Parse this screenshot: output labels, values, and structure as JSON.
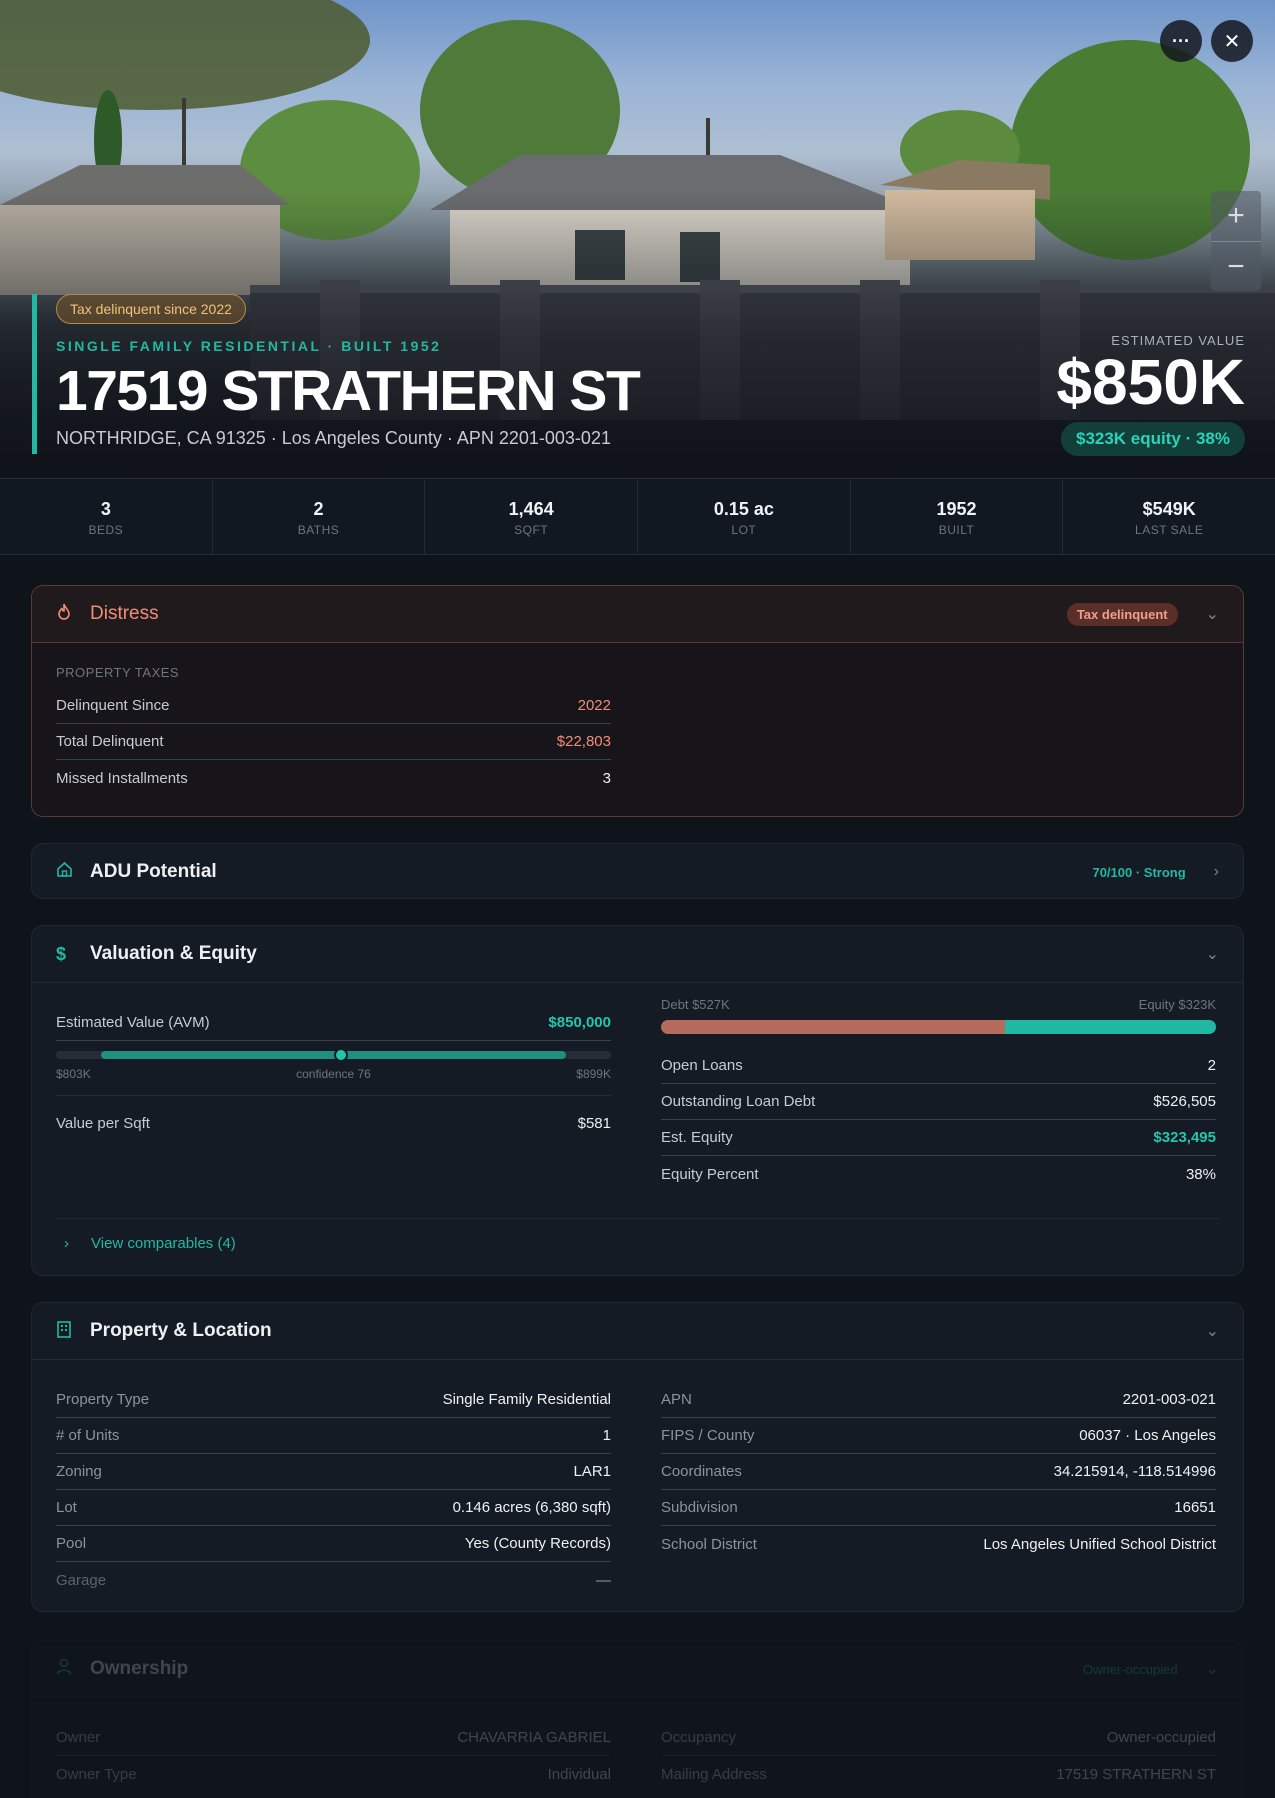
{
  "hero": {
    "tax_pill": "Tax delinquent since 2022",
    "subtitle": "SINGLE FAMILY RESIDENTIAL · BUILT 1952",
    "title": "17519 STRATHERN ST",
    "address": "NORTHRIDGE, CA 91325 · Los Angeles County · APN 2201-003-021",
    "estimated_label": "ESTIMATED VALUE",
    "estimated_value": "$850K",
    "equity_pill": "$323K equity · 38%",
    "zoom_in": "+",
    "zoom_out": "−",
    "more": "···",
    "close": "✕"
  },
  "stats": [
    {
      "value": "3",
      "label": "BEDS"
    },
    {
      "value": "2",
      "label": "BATHS"
    },
    {
      "value": "1,464",
      "label": "SQFT"
    },
    {
      "value": "0.15 ac",
      "label": "LOT"
    },
    {
      "value": "1952",
      "label": "BUILT"
    },
    {
      "value": "$549K",
      "label": "LAST SALE"
    }
  ],
  "distress": {
    "title": "Distress",
    "badge": "Tax delinquent",
    "section": "PROPERTY TAXES",
    "rows": [
      {
        "label": "Delinquent Since",
        "value": "2022"
      },
      {
        "label": "Total Delinquent",
        "value": "$22,803"
      },
      {
        "label": "Missed Installments",
        "value": "3"
      }
    ]
  },
  "adu": {
    "title": "ADU Potential",
    "score": "70/100 · Strong"
  },
  "valuation": {
    "title": "Valuation & Equity",
    "avm_label": "Estimated Value (AVM)",
    "avm_value": "$850,000",
    "avm_low": "$803K",
    "avm_conf": "confidence 76",
    "avm_high": "$899K",
    "sqft_label": "Value per Sqft",
    "sqft_value": "$581",
    "debt_label": "Debt $527K",
    "equity_label": "Equity $323K",
    "equity_fraction": 0.38,
    "rows": [
      {
        "label": "Open Loans",
        "value": "2"
      },
      {
        "label": "Outstanding Loan Debt",
        "value": "$526,505"
      },
      {
        "label": "Est. Equity",
        "value": "$323,495"
      },
      {
        "label": "Equity Percent",
        "value": "38%"
      }
    ],
    "comps": "View comparables (4)"
  },
  "property": {
    "title": "Property & Location",
    "left": [
      {
        "label": "Property Type",
        "value": "Single Family Residential"
      },
      {
        "label": "# of Units",
        "value": "1"
      },
      {
        "label": "Zoning",
        "value": "LAR1"
      },
      {
        "label": "Lot",
        "value": "0.146 acres (6,380 sqft)"
      },
      {
        "label": "Pool",
        "value": "Yes (County Records)"
      },
      {
        "label": "Garage",
        "value": "—"
      }
    ],
    "right": [
      {
        "label": "APN",
        "value": "2201-003-021"
      },
      {
        "label": "FIPS / County",
        "value": "06037 · Los Angeles"
      },
      {
        "label": "Coordinates",
        "value": "34.215914, -118.514996"
      },
      {
        "label": "Subdivision",
        "value": "16651"
      },
      {
        "label": "School District",
        "value": "Los Angeles Unified School District"
      }
    ]
  },
  "ownership": {
    "title": "Ownership",
    "badge": "Owner-occupied",
    "left": [
      {
        "label": "Owner",
        "value": "CHAVARRIA GABRIEL"
      },
      {
        "label": "Owner Type",
        "value": "Individual"
      }
    ],
    "right": [
      {
        "label": "Occupancy",
        "value": "Owner-occupied"
      },
      {
        "label": "Mailing Address",
        "value": "17519 STRATHERN ST"
      }
    ]
  },
  "colors": {
    "accent": "#23b8a3",
    "danger": "#f08d78",
    "background": "#0f141b"
  }
}
